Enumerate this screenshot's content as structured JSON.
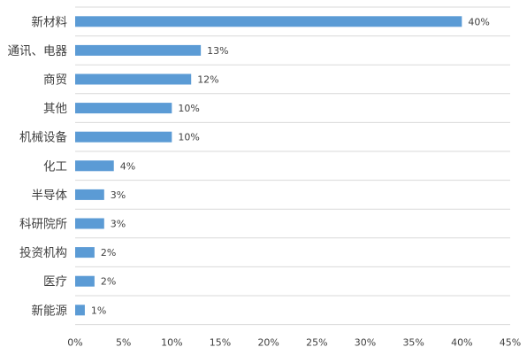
{
  "chart_data": {
    "type": "bar",
    "orientation": "horizontal",
    "categories": [
      "新材料",
      "通讯、电器",
      "商贸",
      "其他",
      "机械设备",
      "化工",
      "半导体",
      "科研院所",
      "投资机构",
      "医疗",
      "新能源"
    ],
    "values": [
      40,
      13,
      12,
      10,
      10,
      4,
      3,
      3,
      2,
      2,
      1
    ],
    "data_labels": [
      "40%",
      "13%",
      "12%",
      "10%",
      "10%",
      "4%",
      "3%",
      "3%",
      "2%",
      "2%",
      "1%"
    ],
    "x_ticks": [
      0,
      5,
      10,
      15,
      20,
      25,
      30,
      35,
      40,
      45
    ],
    "x_tick_labels": [
      "0%",
      "5%",
      "10%",
      "15%",
      "20%",
      "25%",
      "30%",
      "35%",
      "40%",
      "45%"
    ],
    "xlim": [
      0,
      45
    ],
    "title": "",
    "xlabel": "",
    "ylabel": "",
    "grid": "horizontal lines between categories",
    "legend": "none",
    "colors": {
      "bar": "#5B9BD5",
      "grid": "#D9D9D9",
      "text": "#404040"
    }
  }
}
